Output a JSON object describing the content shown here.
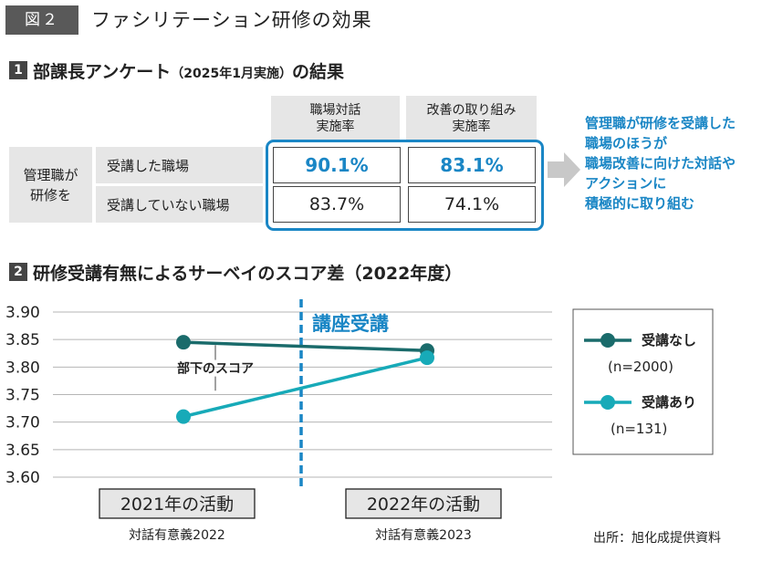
{
  "figure": {
    "badge": "図２",
    "title": "ファシリテーション研修の効果"
  },
  "section1": {
    "number": "1",
    "title": "部課長アンケート",
    "subtitle": "（2025年1月実施）",
    "suffix": "の結果",
    "col_headers": [
      {
        "line1": "職場対話",
        "line2": "実施率"
      },
      {
        "line1": "改善の取り組み",
        "line2": "実施率"
      }
    ],
    "group_label": {
      "line1": "管理職が",
      "line2": "研修を"
    },
    "rows": [
      {
        "label": "受講した職場",
        "values": [
          "90.1%",
          "83.1%"
        ],
        "highlight": true
      },
      {
        "label": "受講していない職場",
        "values": [
          "83.7%",
          "74.1%"
        ],
        "highlight": false
      }
    ],
    "callout": [
      "管理職が研修を受講した",
      "職場のほうが",
      "職場改善に向けた対話や",
      "アクションに",
      "積極的に取り組む"
    ]
  },
  "section2": {
    "number": "2",
    "title": "研修受講有無によるサーベイのスコア差（2022年度）"
  },
  "chart_data": {
    "type": "line",
    "categories": [
      "2021年の活動",
      "2022年の活動"
    ],
    "category_sublabels": [
      "対話有意義2022",
      "対話有意義2023"
    ],
    "series": [
      {
        "name": "受講なし",
        "count_label": "(n=2000)",
        "values": [
          3.845,
          3.83
        ],
        "color": "#1a6b6b"
      },
      {
        "name": "受講あり",
        "count_label": "(n=131)",
        "values": [
          3.71,
          3.817
        ],
        "color": "#17aab8"
      }
    ],
    "ylim": [
      3.6,
      3.9
    ],
    "yticks": [
      "3.90",
      "3.85",
      "3.80",
      "3.75",
      "3.70",
      "3.65",
      "3.60"
    ],
    "annotation": "部下のスコア",
    "divider_label": "講座受講",
    "divider_color": "#1a86c5",
    "grid": true,
    "legend_position": "right"
  },
  "source": "出所：旭化成提供資料"
}
